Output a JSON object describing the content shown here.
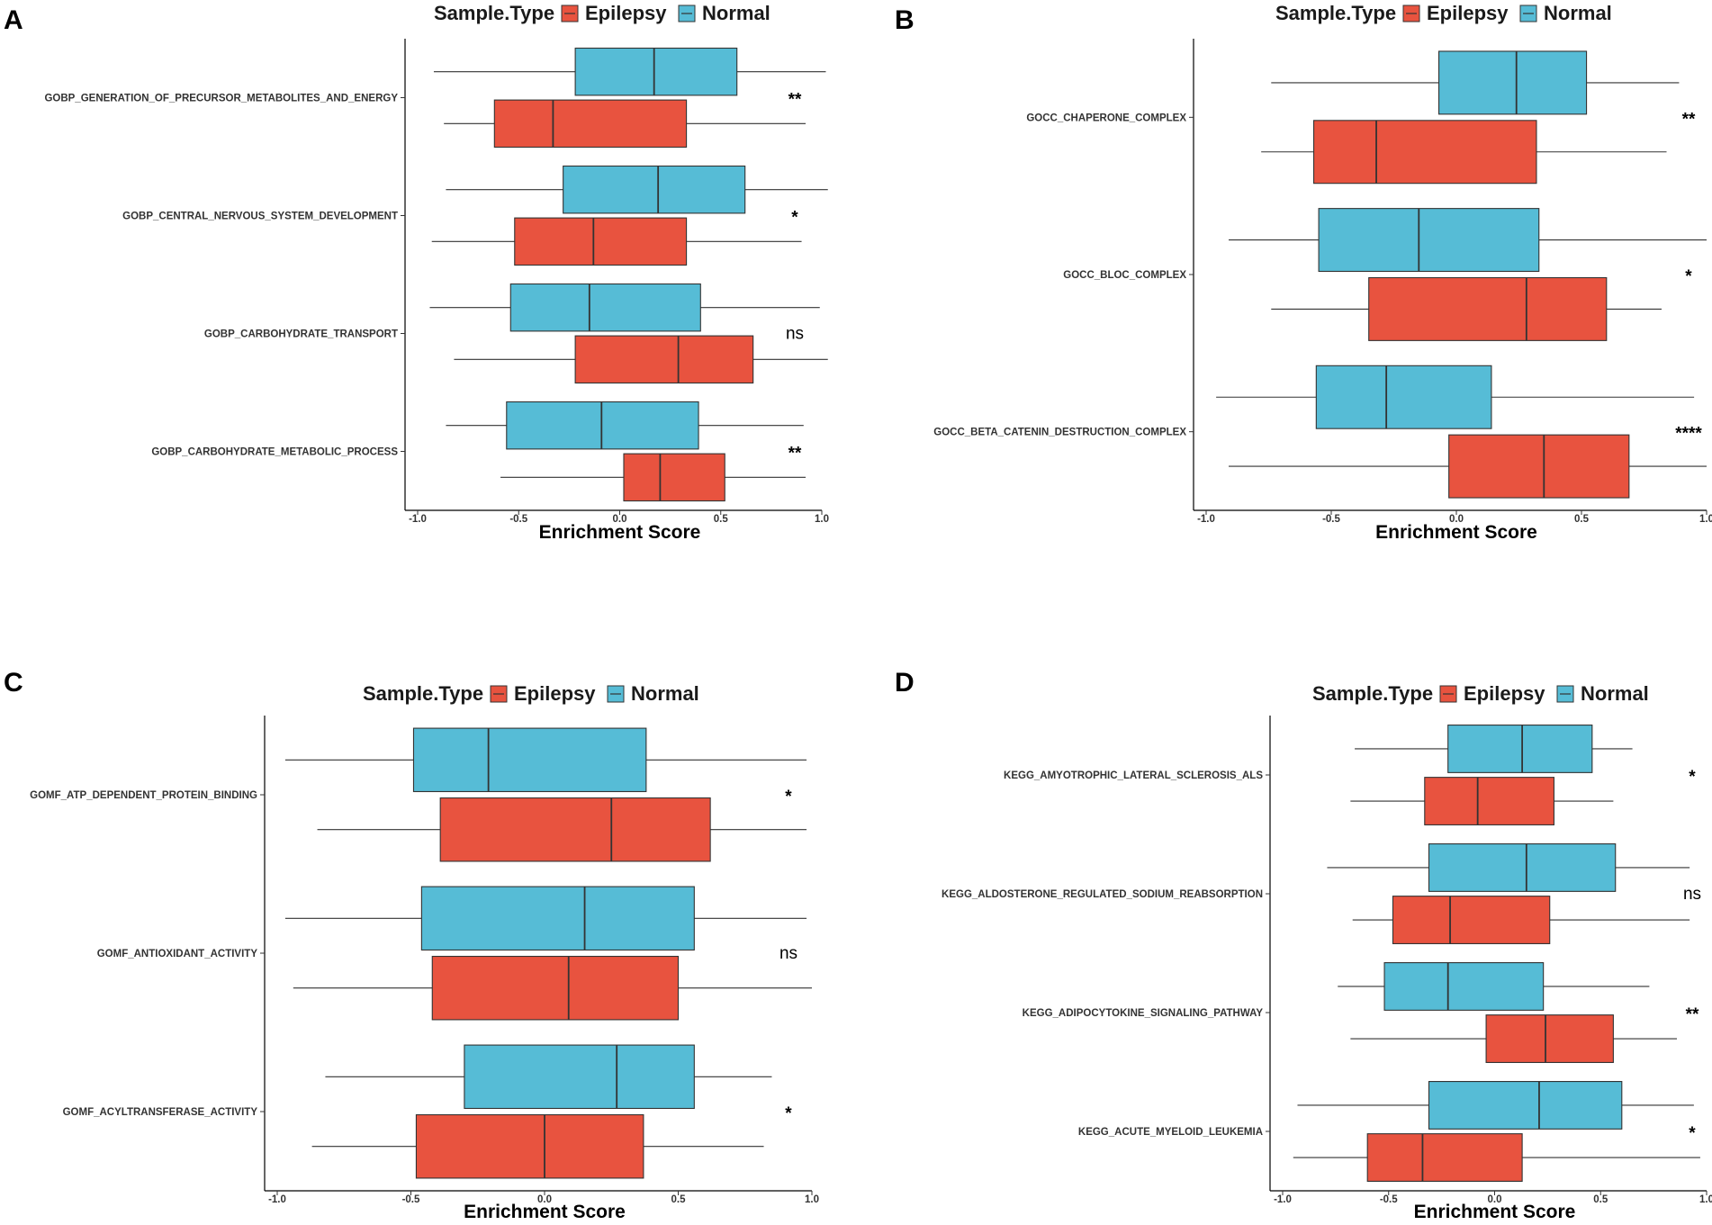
{
  "legend": {
    "title": "Sample.Type",
    "items": [
      {
        "name": "Epilepsy",
        "color": "#E8533F"
      },
      {
        "name": "Normal",
        "color": "#56BCD6"
      }
    ]
  },
  "chart_data": [
    {
      "panel": "A",
      "type": "boxplot",
      "orientation": "horizontal",
      "xlabel": "Enrichment Score",
      "xlim": [
        -1.0,
        1.0
      ],
      "xticks": [
        "-1.0",
        "-0.5",
        "0.0",
        "0.5",
        "1.0"
      ],
      "tick_values": [
        -1.0,
        -0.5,
        0.0,
        0.5,
        1.0
      ],
      "categories": [
        {
          "label": "GOBP_GENERATION_OF_PRECURSOR_METABOLITES_AND_ENERGY",
          "significance": "**",
          "normal": {
            "min": -0.92,
            "q1": -0.22,
            "median": 0.17,
            "q3": 0.58,
            "max": 1.02
          },
          "epilepsy": {
            "min": -0.87,
            "q1": -0.62,
            "median": -0.33,
            "q3": 0.33,
            "max": 0.92
          }
        },
        {
          "label": "GOBP_CENTRAL_NERVOUS_SYSTEM_DEVELOPMENT",
          "significance": "*",
          "normal": {
            "min": -0.86,
            "q1": -0.28,
            "median": 0.19,
            "q3": 0.62,
            "max": 1.03
          },
          "epilepsy": {
            "min": -0.93,
            "q1": -0.52,
            "median": -0.13,
            "q3": 0.33,
            "max": 0.9
          }
        },
        {
          "label": "GOBP_CARBOHYDRATE_TRANSPORT",
          "significance": "ns",
          "normal": {
            "min": -0.94,
            "q1": -0.54,
            "median": -0.15,
            "q3": 0.4,
            "max": 0.99
          },
          "epilepsy": {
            "min": -0.82,
            "q1": -0.22,
            "median": 0.29,
            "q3": 0.66,
            "max": 1.03
          }
        },
        {
          "label": "GOBP_CARBOHYDRATE_METABOLIC_PROCESS",
          "significance": "**",
          "normal": {
            "min": -0.86,
            "q1": -0.56,
            "median": -0.09,
            "q3": 0.39,
            "max": 0.91
          },
          "epilepsy": {
            "min": -0.59,
            "q1": 0.02,
            "median": 0.2,
            "q3": 0.52,
            "max": 0.92
          }
        }
      ]
    },
    {
      "panel": "B",
      "type": "boxplot",
      "orientation": "horizontal",
      "xlabel": "Enrichment Score",
      "xlim": [
        -1.0,
        1.0
      ],
      "xticks": [
        "-1.0",
        "-0.5",
        "0.0",
        "0.5",
        "1.0"
      ],
      "tick_values": [
        -1.0,
        -0.5,
        0.0,
        0.5,
        1.0
      ],
      "categories": [
        {
          "label": "GOCC_CHAPERONE_COMPLEX",
          "significance": "**",
          "normal": {
            "min": -0.74,
            "q1": -0.07,
            "median": 0.24,
            "q3": 0.52,
            "max": 0.89
          },
          "epilepsy": {
            "min": -0.78,
            "q1": -0.57,
            "median": -0.32,
            "q3": 0.32,
            "max": 0.84
          }
        },
        {
          "label": "GOCC_BLOC_COMPLEX",
          "significance": "*",
          "normal": {
            "min": -0.91,
            "q1": -0.55,
            "median": -0.15,
            "q3": 0.33,
            "max": 1.0
          },
          "epilepsy": {
            "min": -0.74,
            "q1": -0.35,
            "median": 0.28,
            "q3": 0.6,
            "max": 0.82
          }
        },
        {
          "label": "GOCC_BETA_CATENIN_DESTRUCTION_COMPLEX",
          "significance": "****",
          "normal": {
            "min": -0.96,
            "q1": -0.56,
            "median": -0.28,
            "q3": 0.14,
            "max": 0.95
          },
          "epilepsy": {
            "min": -0.91,
            "q1": -0.03,
            "median": 0.35,
            "q3": 0.69,
            "max": 1.0
          }
        }
      ]
    },
    {
      "panel": "C",
      "type": "boxplot",
      "orientation": "horizontal",
      "xlabel": "Enrichment Score",
      "xlim": [
        -1.0,
        1.0
      ],
      "xticks": [
        "-1.0",
        "-0.5",
        "0.0",
        "0.5",
        "1.0"
      ],
      "tick_values": [
        -1.0,
        -0.5,
        0.0,
        0.5,
        1.0
      ],
      "categories": [
        {
          "label": "GOMF_ATP_DEPENDENT_PROTEIN_BINDING",
          "significance": "*",
          "normal": {
            "min": -0.97,
            "q1": -0.49,
            "median": -0.21,
            "q3": 0.38,
            "max": 0.98
          },
          "epilepsy": {
            "min": -0.85,
            "q1": -0.39,
            "median": 0.25,
            "q3": 0.62,
            "max": 0.98
          }
        },
        {
          "label": "GOMF_ANTIOXIDANT_ACTIVITY",
          "significance": "ns",
          "normal": {
            "min": -0.97,
            "q1": -0.46,
            "median": 0.15,
            "q3": 0.56,
            "max": 0.98
          },
          "epilepsy": {
            "min": -0.94,
            "q1": -0.42,
            "median": 0.09,
            "q3": 0.5,
            "max": 1.0
          }
        },
        {
          "label": "GOMF_ACYLTRANSFERASE_ACTIVITY",
          "significance": "*",
          "normal": {
            "min": -0.82,
            "q1": -0.3,
            "median": 0.27,
            "q3": 0.56,
            "max": 0.85
          },
          "epilepsy": {
            "min": -0.87,
            "q1": -0.48,
            "median": 0.0,
            "q3": 0.37,
            "max": 0.82
          }
        }
      ]
    },
    {
      "panel": "D",
      "type": "boxplot",
      "orientation": "horizontal",
      "xlabel": "Enrichment Score",
      "xlim": [
        -1.0,
        1.0
      ],
      "xticks": [
        "-1.0",
        "-0.5",
        "0.0",
        "0.5",
        "1.0"
      ],
      "tick_values": [
        -1.0,
        -0.5,
        0.0,
        0.5,
        1.0
      ],
      "categories": [
        {
          "label": "KEGG_AMYOTROPHIC_LATERAL_SCLEROSIS_ALS",
          "significance": "*",
          "normal": {
            "min": -0.66,
            "q1": -0.22,
            "median": 0.13,
            "q3": 0.46,
            "max": 0.65
          },
          "epilepsy": {
            "min": -0.68,
            "q1": -0.33,
            "median": -0.08,
            "q3": 0.28,
            "max": 0.56
          }
        },
        {
          "label": "KEGG_ALDOSTERONE_REGULATED_SODIUM_REABSORPTION",
          "significance": "ns",
          "normal": {
            "min": -0.79,
            "q1": -0.31,
            "median": 0.15,
            "q3": 0.57,
            "max": 0.92
          },
          "epilepsy": {
            "min": -0.67,
            "q1": -0.48,
            "median": -0.21,
            "q3": 0.26,
            "max": 0.92
          }
        },
        {
          "label": "KEGG_ADIPOCYTOKINE_SIGNALING_PATHWAY",
          "significance": "**",
          "normal": {
            "min": -0.74,
            "q1": -0.52,
            "median": -0.22,
            "q3": 0.23,
            "max": 0.73
          },
          "epilepsy": {
            "min": -0.68,
            "q1": -0.04,
            "median": 0.24,
            "q3": 0.56,
            "max": 0.86
          }
        },
        {
          "label": "KEGG_ACUTE_MYELOID_LEUKEMIA",
          "significance": "*",
          "normal": {
            "min": -0.93,
            "q1": -0.31,
            "median": 0.21,
            "q3": 0.6,
            "max": 0.94
          },
          "epilepsy": {
            "min": -0.95,
            "q1": -0.6,
            "median": -0.34,
            "q3": 0.13,
            "max": 0.97
          }
        }
      ]
    }
  ]
}
